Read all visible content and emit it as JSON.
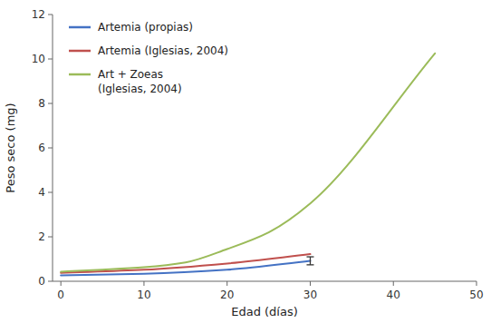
{
  "chart_data": {
    "type": "line",
    "xlabel": "Edad (días)",
    "ylabel": "Peso seco (mg)",
    "xlim": [
      -1,
      50
    ],
    "ylim": [
      0,
      12
    ],
    "xticks": [
      0,
      10,
      20,
      30,
      40,
      50
    ],
    "yticks": [
      0,
      2,
      4,
      6,
      8,
      10,
      12
    ],
    "grid": false,
    "legend": "upper left",
    "series": [
      {
        "name": "Artemia (propias)",
        "color": "#4472C4",
        "x": [
          0,
          10,
          20,
          30
        ],
        "values": [
          0.27,
          0.34,
          0.52,
          0.92
        ],
        "errors": [
          null,
          null,
          null,
          0.18
        ]
      },
      {
        "name": "Artemia (Iglesias, 2004)",
        "color": "#C0504D",
        "x": [
          0,
          10,
          20,
          30
        ],
        "values": [
          0.38,
          0.52,
          0.8,
          1.22
        ]
      },
      {
        "name": "Art + Zoeas\n(Iglesias, 2004)",
        "color": "#9BBB59",
        "x": [
          0,
          5,
          10,
          15,
          20,
          25,
          30,
          45
        ],
        "values": [
          0.43,
          0.52,
          0.63,
          0.85,
          1.45,
          2.2,
          3.5,
          10.25
        ]
      }
    ]
  }
}
